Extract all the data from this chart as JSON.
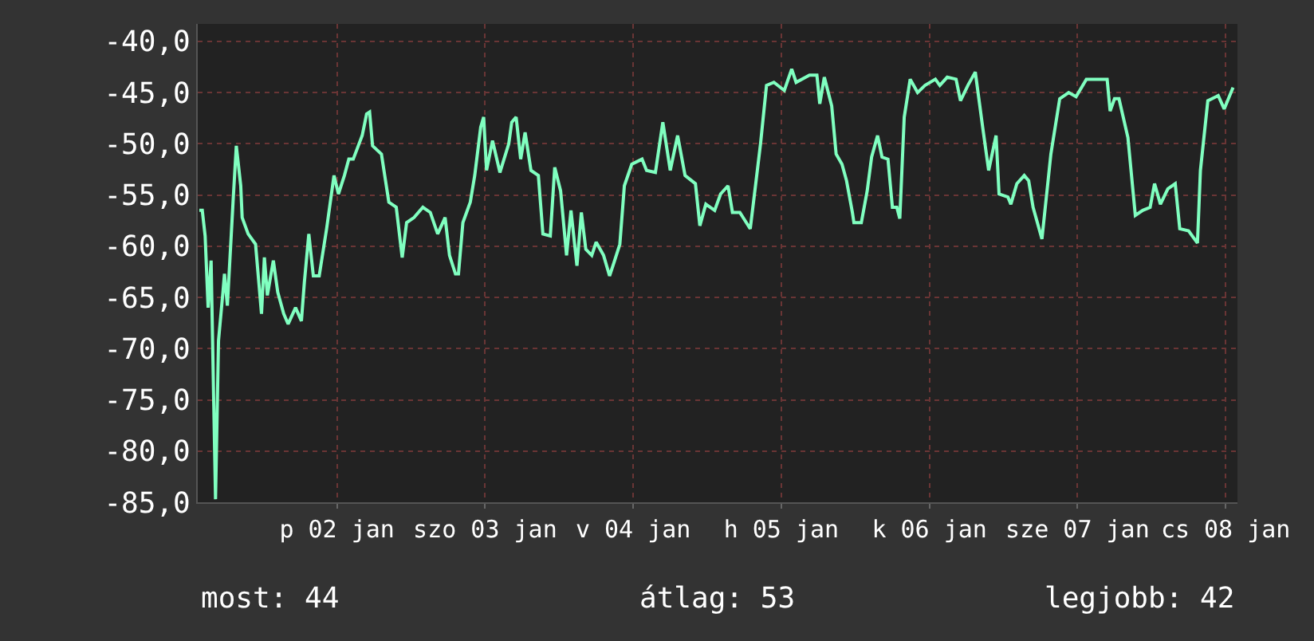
{
  "chart_data": {
    "type": "line",
    "x": [
      "--01-01T13:41",
      "--01-01T14:10",
      "--01-01T14:38",
      "--01-01T15:07",
      "--01-01T15:36",
      "--01-01T16:19",
      "--01-01T16:48",
      "--01-01T17:31",
      "--01-01T17:46",
      "--01-01T18:14",
      "--01-01T19:12",
      "--01-01T19:41",
      "--01-01T20:24",
      "--01-01T20:38",
      "--01-01T21:36",
      "--01-01T22:48",
      "--01-01T23:17",
      "--01-01T23:46",
      "--01-02T00:14",
      "--01-02T00:43",
      "--01-02T01:41",
      "--01-02T02:24",
      "--01-02T03:22",
      "--01-02T04:05",
      "--01-02T05:17",
      "--01-02T06:14",
      "--01-02T06:43",
      "--01-02T07:26",
      "--01-02T08:10",
      "--01-02T09:07",
      "--01-02T10:19",
      "--01-02T11:31",
      "--01-02T12:14",
      "--01-02T13:12",
      "--01-02T13:55",
      "--01-02T14:38",
      "--01-02T16:05",
      "--01-02T16:48",
      "--01-02T17:17",
      "--01-02T17:46",
      "--01-02T19:12",
      "--01-02T20:24",
      "--01-02T21:36",
      "--01-02T22:34",
      "--01-02T23:17",
      "--01-03T00:29",
      "--01-03T01:55",
      "--01-03T03:07",
      "--01-03T04:19",
      "--01-03T05:31",
      "--01-03T06:14",
      "--01-03T07:12",
      "--01-03T07:41",
      "--01-03T08:24",
      "--01-03T09:36",
      "--01-03T10:19",
      "--01-03T11:17",
      "--01-03T11:46",
      "--01-03T12:14",
      "--01-03T13:12",
      "--01-03T14:24",
      "--01-03T15:50",
      "--01-03T16:19",
      "--01-03T17:02",
      "--01-03T17:46",
      "--01-03T18:29",
      "--01-03T19:26",
      "--01-03T20:38",
      "--01-03T21:22",
      "--01-03T22:34",
      "--01-03T23:17",
      "--01-04T00:14",
      "--01-04T01:12",
      "--01-04T01:55",
      "--01-04T02:53",
      "--01-04T03:36",
      "--01-04T04:19",
      "--01-04T05:17",
      "--01-04T06:00",
      "--01-04T07:12",
      "--01-04T08:10",
      "--01-04T08:53",
      "--01-04T09:50",
      "--01-04T10:34",
      "--01-04T11:46",
      "--01-04T13:26",
      "--01-04T14:10",
      "--01-04T15:36",
      "--01-04T16:48",
      "--01-04T18:00",
      "--01-04T19:12",
      "--01-04T20:24",
      "--01-04T22:05",
      "--01-04T22:48",
      "--01-04T23:46",
      "--01-05T01:12",
      "--01-05T02:10",
      "--01-05T03:22",
      "--01-05T04:05",
      "--01-05T05:17",
      "--01-05T06:58",
      "--01-05T07:55",
      "--01-05T08:38",
      "--01-05T09:36",
      "--01-05T10:48",
      "--01-05T12:29",
      "--01-05T13:41",
      "--01-05T14:24",
      "--01-05T16:34",
      "--01-05T17:46",
      "--01-05T18:14",
      "--01-05T18:58",
      "--01-05T20:10",
      "--01-05T20:53",
      "--01-05T21:50",
      "--01-05T22:34",
      "--01-05T23:31",
      "--01-05T23:46",
      "--01-06T00:58",
      "--01-06T01:55",
      "--01-06T02:38",
      "--01-06T03:36",
      "--01-06T04:19",
      "--01-06T05:17",
      "--01-06T06:00",
      "--01-06T06:43",
      "--01-06T07:12",
      "--01-06T07:55",
      "--01-06T08:53",
      "--01-06T10:05",
      "--01-06T11:17",
      "--01-06T12:58",
      "--01-06T13:41",
      "--01-06T14:53",
      "--01-06T16:19",
      "--01-06T17:02",
      "--01-06T18:14",
      "--01-06T19:26",
      "--01-06T20:38",
      "--01-06T21:36",
      "--01-06T22:48",
      "--01-06T23:17",
      "--01-07T00:43",
      "--01-07T01:12",
      "--01-07T02:10",
      "--01-07T03:22",
      "--01-07T04:05",
      "--01-07T04:48",
      "--01-07T06:14",
      "--01-07T07:41",
      "--01-07T09:07",
      "--01-07T10:34",
      "--01-07T11:46",
      "--01-07T13:26",
      "--01-07T15:36",
      "--01-07T16:48",
      "--01-07T17:17",
      "--01-07T18:00",
      "--01-07T18:43",
      "--01-07T20:10",
      "--01-07T21:22",
      "--01-07T22:34",
      "--01-07T23:46",
      "--01-08T00:29",
      "--01-08T01:26",
      "--01-08T02:38",
      "--01-08T03:50",
      "--01-08T04:34",
      "--01-08T06:00",
      "--01-08T07:26",
      "--01-08T07:55",
      "--01-08T09:07",
      "--01-08T10:48",
      "--01-08T11:46",
      "--01-08T13:12"
    ],
    "values": [
      -56.5,
      -56.5,
      -59.0,
      -66.0,
      -61.4,
      -84.7,
      -69.2,
      -64.5,
      -62.7,
      -65.8,
      -55.2,
      -50.2,
      -54.1,
      -57.2,
      -58.8,
      -59.8,
      -63.2,
      -66.6,
      -61.1,
      -64.8,
      -61.4,
      -64.5,
      -66.6,
      -67.6,
      -66.0,
      -67.3,
      -63.5,
      -58.8,
      -62.9,
      -62.9,
      -58.3,
      -53.1,
      -54.9,
      -53.1,
      -51.5,
      -51.5,
      -49.2,
      -47.1,
      -46.9,
      -50.2,
      -51.0,
      -55.7,
      -56.2,
      -61.1,
      -57.7,
      -57.2,
      -56.2,
      -56.7,
      -58.8,
      -57.2,
      -60.9,
      -62.7,
      -62.7,
      -57.7,
      -55.7,
      -53.1,
      -48.4,
      -47.4,
      -52.6,
      -49.7,
      -52.8,
      -50.0,
      -47.9,
      -47.4,
      -51.5,
      -48.9,
      -52.6,
      -53.1,
      -58.8,
      -59.0,
      -52.3,
      -54.6,
      -60.9,
      -56.5,
      -61.9,
      -56.7,
      -60.3,
      -60.9,
      -59.6,
      -60.9,
      -62.9,
      -61.6,
      -59.8,
      -54.1,
      -52.0,
      -51.5,
      -52.6,
      -52.8,
      -47.9,
      -52.6,
      -49.2,
      -53.1,
      -53.9,
      -58.0,
      -55.9,
      -56.5,
      -54.9,
      -54.1,
      -56.7,
      -56.7,
      -58.3,
      -53.6,
      -50.0,
      -44.3,
      -44.0,
      -44.8,
      -42.7,
      -44.0,
      -43.3,
      -43.3,
      -46.1,
      -43.5,
      -46.3,
      -51.0,
      -52.0,
      -53.6,
      -56.7,
      -57.7,
      -57.7,
      -54.6,
      -51.3,
      -49.2,
      -51.3,
      -51.5,
      -56.2,
      -56.2,
      -57.3,
      -47.4,
      -43.7,
      -45.0,
      -44.3,
      -43.7,
      -44.3,
      -43.5,
      -43.7,
      -45.8,
      -44.3,
      -43.0,
      -48.4,
      -52.6,
      -49.2,
      -54.9,
      -55.2,
      -55.9,
      -53.9,
      -53.1,
      -53.6,
      -56.2,
      -59.3,
      -51.0,
      -45.6,
      -45.0,
      -45.4,
      -43.7,
      -43.7,
      -43.7,
      -46.8,
      -45.6,
      -45.6,
      -49.4,
      -57.0,
      -56.5,
      -56.2,
      -53.9,
      -55.9,
      -54.4,
      -53.9,
      -58.3,
      -58.5,
      -59.7,
      -52.6,
      -45.8,
      -45.3,
      -46.6,
      -44.5
    ],
    "color": "#80ffc0",
    "xlim": [
      "--01-01T13:26",
      "--01-08T13:55"
    ],
    "xticks": [
      {
        "value": "--01-02T12:00",
        "label": "p 02 jan"
      },
      {
        "value": "--01-03T12:00",
        "label": "szo 03 jan"
      },
      {
        "value": "--01-04T12:00",
        "label": "v 04 jan"
      },
      {
        "value": "--01-05T12:00",
        "label": "h 05 jan"
      },
      {
        "value": "--01-06T12:00",
        "label": "k 06 jan"
      },
      {
        "value": "--01-07T12:00",
        "label": "sze 07 jan"
      },
      {
        "value": "--01-08T12:00",
        "label": "cs 08 jan"
      }
    ],
    "ylim": [
      -85,
      -38.3
    ],
    "yticks": [
      {
        "value": -85,
        "label": "-85,0"
      },
      {
        "value": -80,
        "label": "-80,0"
      },
      {
        "value": -75,
        "label": "-75,0"
      },
      {
        "value": -70,
        "label": "-70,0"
      },
      {
        "value": -65,
        "label": "-65,0"
      },
      {
        "value": -60,
        "label": "-60,0"
      },
      {
        "value": -55,
        "label": "-55,0"
      },
      {
        "value": -50,
        "label": "-50,0"
      },
      {
        "value": -45,
        "label": "-45,0"
      },
      {
        "value": -40,
        "label": "-40,0"
      }
    ],
    "grid": true,
    "annotations": [
      "most: 44",
      "átlag: 53",
      "legjobb: 42"
    ]
  }
}
